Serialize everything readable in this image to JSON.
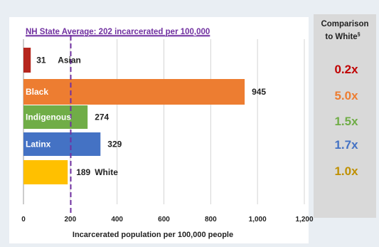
{
  "chart_data": {
    "type": "bar",
    "orientation": "horizontal",
    "categories": [
      "Asian",
      "Black",
      "Indigenous",
      "Latinx",
      "White"
    ],
    "values": [
      31,
      945,
      274,
      329,
      189
    ],
    "value_labels": [
      "31",
      "945",
      "274",
      "329",
      "189"
    ],
    "colors": [
      "#b5261e",
      "#ed7d31",
      "#70ad47",
      "#4472c4",
      "#ffc000"
    ],
    "xlabel": "Incarcerated population per 100,000 people",
    "xlim": [
      0,
      1200
    ],
    "xticks": [
      0,
      200,
      400,
      600,
      800,
      1000,
      1200
    ],
    "xtick_labels": [
      "0",
      "200",
      "400",
      "600",
      "800",
      "1,000",
      "1,200"
    ],
    "grid": "vertical",
    "reference_line": {
      "value": 202,
      "label": "NH State Average: 202 incarcerated per 100,000",
      "color": "#7030a0",
      "style": "dashed"
    },
    "comparison": {
      "title_line1": "Comparison",
      "title_line2": "to White",
      "footnote_mark": "§",
      "values": [
        "0.2x",
        "5.0x",
        "1.5x",
        "1.7x",
        "1.0x"
      ],
      "colors": [
        "#c00000",
        "#ed7d31",
        "#70ad47",
        "#4472c4",
        "#bf9000"
      ]
    }
  }
}
